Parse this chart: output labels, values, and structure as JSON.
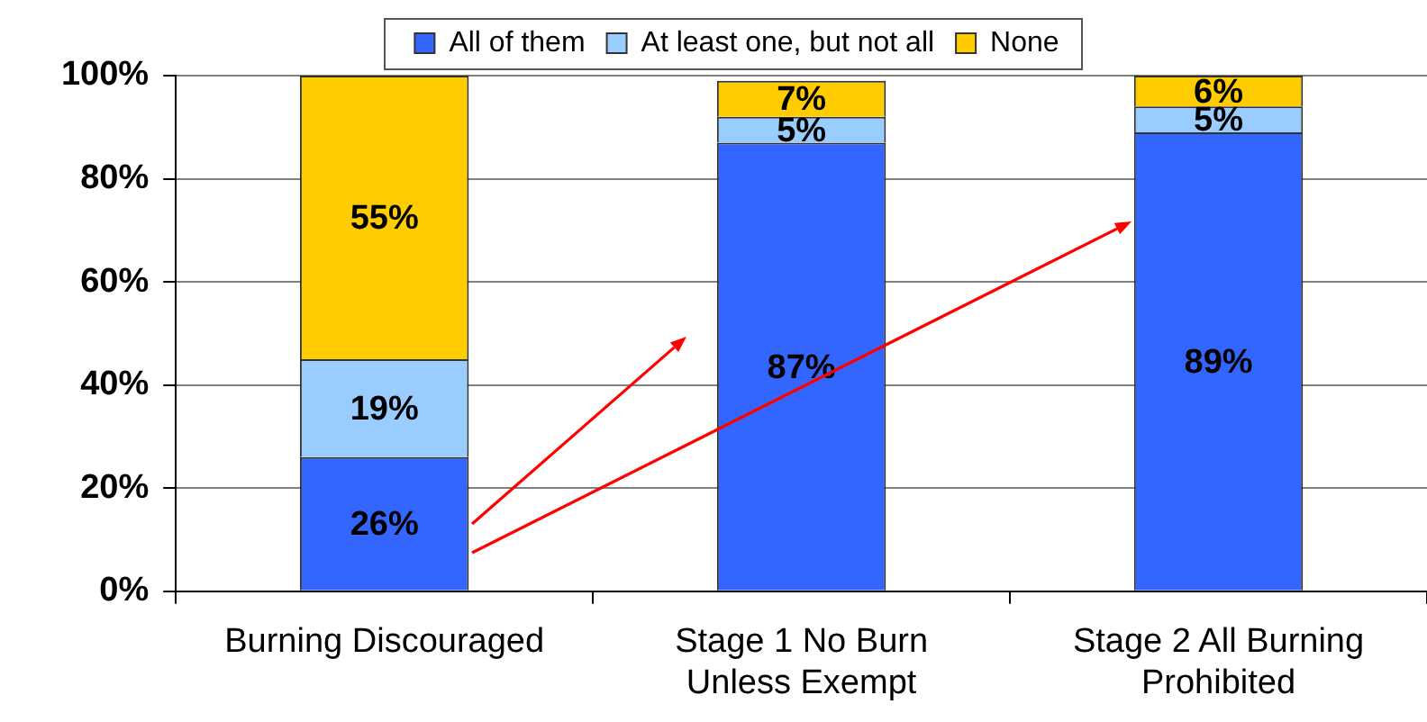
{
  "chart_data": {
    "type": "bar",
    "categories": [
      "Burning Discouraged",
      "Stage 1 No Burn Unless Exempt",
      "Stage 2 All Burning Prohibited"
    ],
    "series": [
      {
        "name": "All of them",
        "color": "#3366ff",
        "values": [
          26,
          87,
          89
        ],
        "value_labels": [
          "26%",
          "87%",
          "89%"
        ]
      },
      {
        "name": "At least one, but not all",
        "color": "#99ccff",
        "values": [
          19,
          5,
          5
        ],
        "value_labels": [
          "19%",
          "5%",
          "5%"
        ]
      },
      {
        "name": "None",
        "color": "#ffcc00",
        "values": [
          55,
          7,
          6
        ],
        "value_labels": [
          "55%",
          "7%",
          "6%"
        ]
      }
    ],
    "stacked": true,
    "ylim": [
      0,
      100
    ],
    "yticks": [
      {
        "value": 0,
        "label": "0%"
      },
      {
        "value": 20,
        "label": "20%"
      },
      {
        "value": 40,
        "label": "40%"
      },
      {
        "value": 60,
        "label": "60%"
      },
      {
        "value": 80,
        "label": "80%"
      },
      {
        "value": 100,
        "label": "100%"
      }
    ],
    "grid": "y",
    "legend": "top"
  }
}
